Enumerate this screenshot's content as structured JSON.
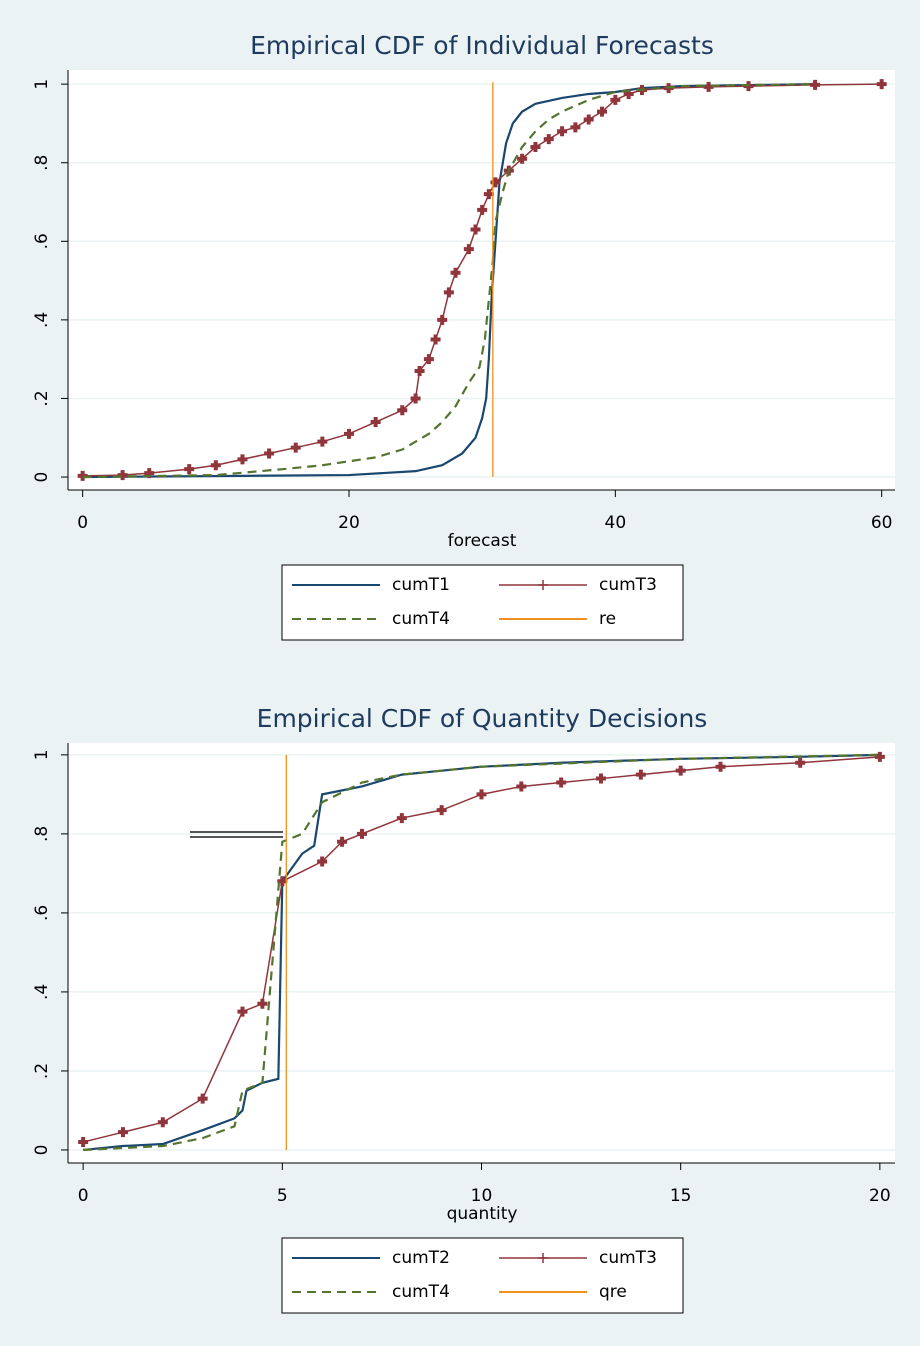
{
  "chart_data": [
    {
      "type": "line",
      "title": "Empirical CDF of Individual Forecasts",
      "xlabel": "forecast",
      "xlim": [
        -1.1,
        61
      ],
      "ylim": [
        -0.033,
        1.036
      ],
      "xticks": [
        0,
        20,
        40,
        60
      ],
      "yticks": [
        0,
        {
          "value": 0.2,
          "label": ".2"
        },
        {
          "value": 0.4,
          "label": ".4"
        },
        {
          "value": 0.6,
          "label": ".6"
        },
        {
          "value": 0.8,
          "label": ".8"
        },
        1
      ],
      "grid": true,
      "series": [
        {
          "name": "cumT1",
          "color": "#1a476f",
          "line_style": "solid",
          "x": [
            0,
            12,
            20,
            25,
            27,
            28.5,
            29.5,
            30,
            30.3,
            30.5,
            30.7,
            31,
            31.3,
            31.8,
            32.3,
            33,
            34,
            36,
            38,
            40,
            42,
            45,
            55
          ],
          "values": [
            0,
            0.003,
            0.005,
            0.015,
            0.03,
            0.06,
            0.1,
            0.15,
            0.2,
            0.3,
            0.45,
            0.6,
            0.75,
            0.85,
            0.9,
            0.93,
            0.95,
            0.965,
            0.975,
            0.98,
            0.99,
            0.995,
            1
          ]
        },
        {
          "name": "cumT3",
          "color": "#90353b",
          "line_style": "solid",
          "marker": "plus",
          "x": [
            0,
            3,
            5,
            8,
            10,
            12,
            14,
            16,
            18,
            20,
            22,
            24,
            25,
            25.3,
            26,
            26.5,
            27,
            27.5,
            28,
            29,
            29.5,
            30,
            30.5,
            31,
            32,
            33,
            34,
            35,
            36,
            37,
            38,
            39,
            40,
            41,
            42,
            44,
            47,
            50,
            55,
            60
          ],
          "values": [
            0.003,
            0.005,
            0.01,
            0.02,
            0.03,
            0.045,
            0.06,
            0.075,
            0.09,
            0.11,
            0.14,
            0.17,
            0.2,
            0.27,
            0.3,
            0.35,
            0.4,
            0.47,
            0.52,
            0.58,
            0.63,
            0.68,
            0.72,
            0.75,
            0.78,
            0.81,
            0.84,
            0.86,
            0.88,
            0.89,
            0.91,
            0.93,
            0.96,
            0.975,
            0.985,
            0.99,
            0.993,
            0.995,
            0.998,
            1
          ]
        },
        {
          "name": "cumT4",
          "color": "#55752f",
          "line_style": "dash",
          "x": [
            0,
            10,
            15,
            18,
            22,
            24,
            25,
            26,
            27,
            28,
            29,
            29.8,
            30.2,
            30.5,
            30.8,
            31,
            31.5,
            32,
            33,
            34,
            35,
            36,
            38,
            40,
            45,
            55
          ],
          "values": [
            0,
            0.005,
            0.02,
            0.03,
            0.05,
            0.07,
            0.09,
            0.11,
            0.14,
            0.18,
            0.24,
            0.28,
            0.35,
            0.45,
            0.55,
            0.65,
            0.72,
            0.78,
            0.84,
            0.88,
            0.91,
            0.93,
            0.96,
            0.98,
            0.995,
            1
          ]
        },
        {
          "name": "re",
          "color": "#f0901e",
          "line_style": "solid",
          "x": [
            30.8,
            30.8
          ],
          "values": [
            0,
            1.005
          ]
        }
      ]
    },
    {
      "type": "line",
      "title": "Empirical CDF of Quantity Decisions",
      "xlabel": "quantity",
      "xlim": [
        -0.38,
        20.38
      ],
      "ylim": [
        -0.033,
        1.03
      ],
      "xticks": [
        0,
        5,
        10,
        15,
        20
      ],
      "yticks": [
        0,
        {
          "value": 0.2,
          "label": ".2"
        },
        {
          "value": 0.4,
          "label": ".4"
        },
        {
          "value": 0.6,
          "label": ".6"
        },
        {
          "value": 0.8,
          "label": ".8"
        },
        1
      ],
      "grid": true,
      "series": [
        {
          "name": "cumT2",
          "color": "#1a476f",
          "line_style": "solid",
          "x": [
            0,
            1,
            2,
            3,
            3.8,
            4,
            4.1,
            4.5,
            4.9,
            5,
            5.5,
            5.8,
            6,
            7,
            8,
            9,
            10,
            12,
            15,
            18,
            20
          ],
          "values": [
            0,
            0.01,
            0.015,
            0.05,
            0.08,
            0.1,
            0.15,
            0.17,
            0.18,
            0.68,
            0.75,
            0.77,
            0.9,
            0.92,
            0.95,
            0.96,
            0.97,
            0.98,
            0.99,
            0.995,
            1
          ]
        },
        {
          "name": "cumT3",
          "color": "#90353b",
          "line_style": "solid",
          "marker": "plus",
          "x": [
            0,
            1,
            2,
            3,
            4,
            4.5,
            5,
            6,
            6.5,
            7,
            8,
            9,
            10,
            11,
            12,
            13,
            14,
            15,
            16,
            18,
            20
          ],
          "values": [
            0.02,
            0.045,
            0.07,
            0.13,
            0.35,
            0.37,
            0.68,
            0.73,
            0.78,
            0.8,
            0.84,
            0.86,
            0.9,
            0.92,
            0.93,
            0.94,
            0.95,
            0.96,
            0.97,
            0.98,
            0.995
          ]
        },
        {
          "name": "cumT4",
          "color": "#55752f",
          "line_style": "dash",
          "x": [
            0,
            2,
            3,
            3.8,
            4,
            4.5,
            5,
            5.5,
            6,
            7,
            8,
            10,
            15,
            20
          ],
          "values": [
            0,
            0.01,
            0.03,
            0.06,
            0.15,
            0.17,
            0.78,
            0.8,
            0.88,
            0.93,
            0.95,
            0.97,
            0.99,
            1
          ]
        },
        {
          "name": "qre",
          "color": "#f0901e",
          "line_style": "solid",
          "x": [
            5.1,
            5.1
          ],
          "values": [
            0,
            1
          ]
        }
      ]
    }
  ]
}
